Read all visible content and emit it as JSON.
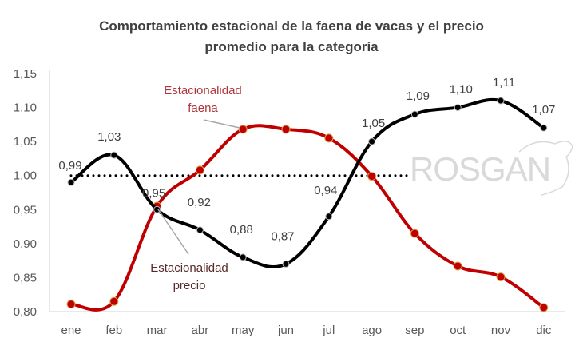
{
  "chart_data": {
    "type": "line",
    "title_line1": "Comportamiento estacional de la faena de vacas y el precio",
    "title_line2": "promedio para la categoría",
    "categories": [
      "ene",
      "feb",
      "mar",
      "abr",
      "may",
      "jun",
      "jul",
      "ago",
      "sep",
      "oct",
      "nov",
      "dic"
    ],
    "ylim": [
      0.8,
      1.15
    ],
    "yticks": [
      "0,80",
      "0,85",
      "0,90",
      "0,95",
      "1,00",
      "1,05",
      "1,10",
      "1,15"
    ],
    "ytick_values": [
      0.8,
      0.85,
      0.9,
      0.95,
      1.0,
      1.05,
      1.1,
      1.15
    ],
    "reference_line": 1.0,
    "series": [
      {
        "name": "Estacionalidad precio",
        "label_line1": "Estacionalidad",
        "label_line2": "precio",
        "color": "#000000",
        "values": [
          0.99,
          1.03,
          0.95,
          0.92,
          0.88,
          0.87,
          0.94,
          1.05,
          1.09,
          1.1,
          1.11,
          1.07
        ],
        "data_labels": [
          "0,99",
          "1,03",
          "0,95",
          "0,92",
          "0,88",
          "0,87",
          "0,94",
          "1,05",
          "1,09",
          "1,10",
          "1,11",
          "1,07"
        ]
      },
      {
        "name": "Estacionalidad faena",
        "label_line1": "Estacionalidad",
        "label_line2": "faena",
        "color": "#c00000",
        "values": [
          0.811,
          0.815,
          0.955,
          1.008,
          1.068,
          1.068,
          1.055,
          0.999,
          0.915,
          0.867,
          0.851,
          0.806
        ]
      }
    ],
    "watermark": "ROSGAN",
    "grid": false
  }
}
